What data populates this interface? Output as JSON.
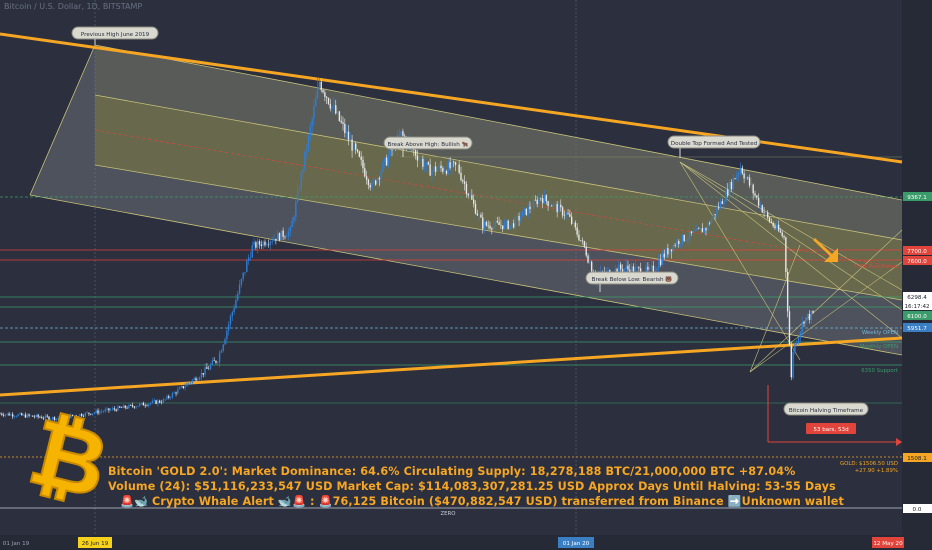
{
  "chart_header": "Bitcoin / U.S. Dollar, 1D, BITSTAMP",
  "overlay_text": {
    "line1": "Bitcoin 'GOLD 2.0': Market Dominance: 64.6%  Circulating Supply: 18,278,188 BTC/21,000,000 BTC +87.04%",
    "line2": "Volume (24): $51,116,233,547 USD  Market Cap: $114,083,307,281.25 USD Approx Days Until Halving: 53-55 Days",
    "line3": "🚨🐋 Crypto Whale Alert 🐋🚨 :  🚨76,125 Bitcoin ($470,882,547 USD) transferred from Binance ➡️Unknown wallet"
  },
  "annotations": {
    "previous_high": "Previous High June 2019",
    "break_above": "Break Above High: Bullish 🐂",
    "double_top": "Double Top Formed And Tested",
    "break_below": "Break Below Low: Bearish 🐻",
    "halving_timeframe": "Bitcoin Halving Timeframe",
    "bars_countdown": "53 bars, 53d",
    "resistance_label": "7800 Resistance",
    "support_label": "6350 Support",
    "weekly_open_label": "Weekly OPEN",
    "monthly_label": "Monthly OPEN",
    "zero_label": "ZERO",
    "gold_label": "GOLD: $1506.50 USD",
    "gold_change": "+27.90 +1.89%"
  },
  "price_tags": {
    "p9367": "9367.1",
    "p7700": "7700.0",
    "p7600": "7600.0",
    "p6298": "6298.4",
    "timer": "16:17:42",
    "p6100": "6100.0",
    "p5951": "5951.7",
    "p1508": "1508.1",
    "p0": "0.0"
  },
  "time_axis": {
    "labels": [
      "01 Jan 19",
      "26 Jun 19",
      "01 Jan 20",
      "12 May 20"
    ]
  },
  "colors": {
    "background": "#2b2f3e",
    "accent_orange": "#f6a623",
    "bull": "#2d7fd8",
    "bear": "#e8e8e8",
    "channel_fill": "#6d6e4e",
    "red_line": "#e0443a",
    "green_line": "#3a9c6a"
  },
  "chart_data": {
    "type": "line",
    "title": "",
    "xlabel": "",
    "ylabel": "",
    "x_range": [
      "2019-01-01",
      "2020-05-12"
    ],
    "ylim": [
      0,
      14000
    ],
    "series": [
      {
        "values_x": [
          "2019-01-01",
          "2019-02-01",
          "2019-03-01",
          "2019-04-01",
          "2019-05-01",
          "2019-05-20",
          "2019-06-10",
          "2019-06-26",
          "2019-07-10",
          "2019-07-25",
          "2019-08-10",
          "2019-08-25",
          "2019-09-10",
          "2019-09-24",
          "2019-10-10",
          "2019-10-26",
          "2019-11-10",
          "2019-11-25",
          "2019-12-10",
          "2019-12-25",
          "2020-01-10",
          "2020-01-25",
          "2020-02-13",
          "2020-02-28",
          "2020-03-08",
          "2020-03-12",
          "2020-03-13",
          "2020-03-19",
          "2020-03-24"
        ],
        "values_y": [
          3700,
          3550,
          3800,
          4100,
          5300,
          7800,
          8300,
          12900,
          11400,
          9700,
          11300,
          10200,
          10300,
          8500,
          8500,
          9400,
          8800,
          7100,
          7300,
          7200,
          8000,
          8400,
          10300,
          8700,
          8100,
          4800,
          5500,
          6200,
          6298
        ]
      }
    ],
    "levels": [
      {
        "label": "9367.1",
        "value": 9367.1
      },
      {
        "label": "7800 Resistance",
        "value": 7800
      },
      {
        "label": "7700.0",
        "value": 7700
      },
      {
        "label": "7600.0",
        "value": 7600
      },
      {
        "label": "6298.4",
        "value": 6298.4
      },
      {
        "label": "6100.0",
        "value": 6100
      },
      {
        "label": "5951.7",
        "value": 5951.7
      },
      {
        "label": "6350 Support",
        "value": 6350
      },
      {
        "label": "1508.1",
        "value": 1508.1
      },
      {
        "label": "0.0",
        "value": 0
      }
    ],
    "grid": true
  }
}
